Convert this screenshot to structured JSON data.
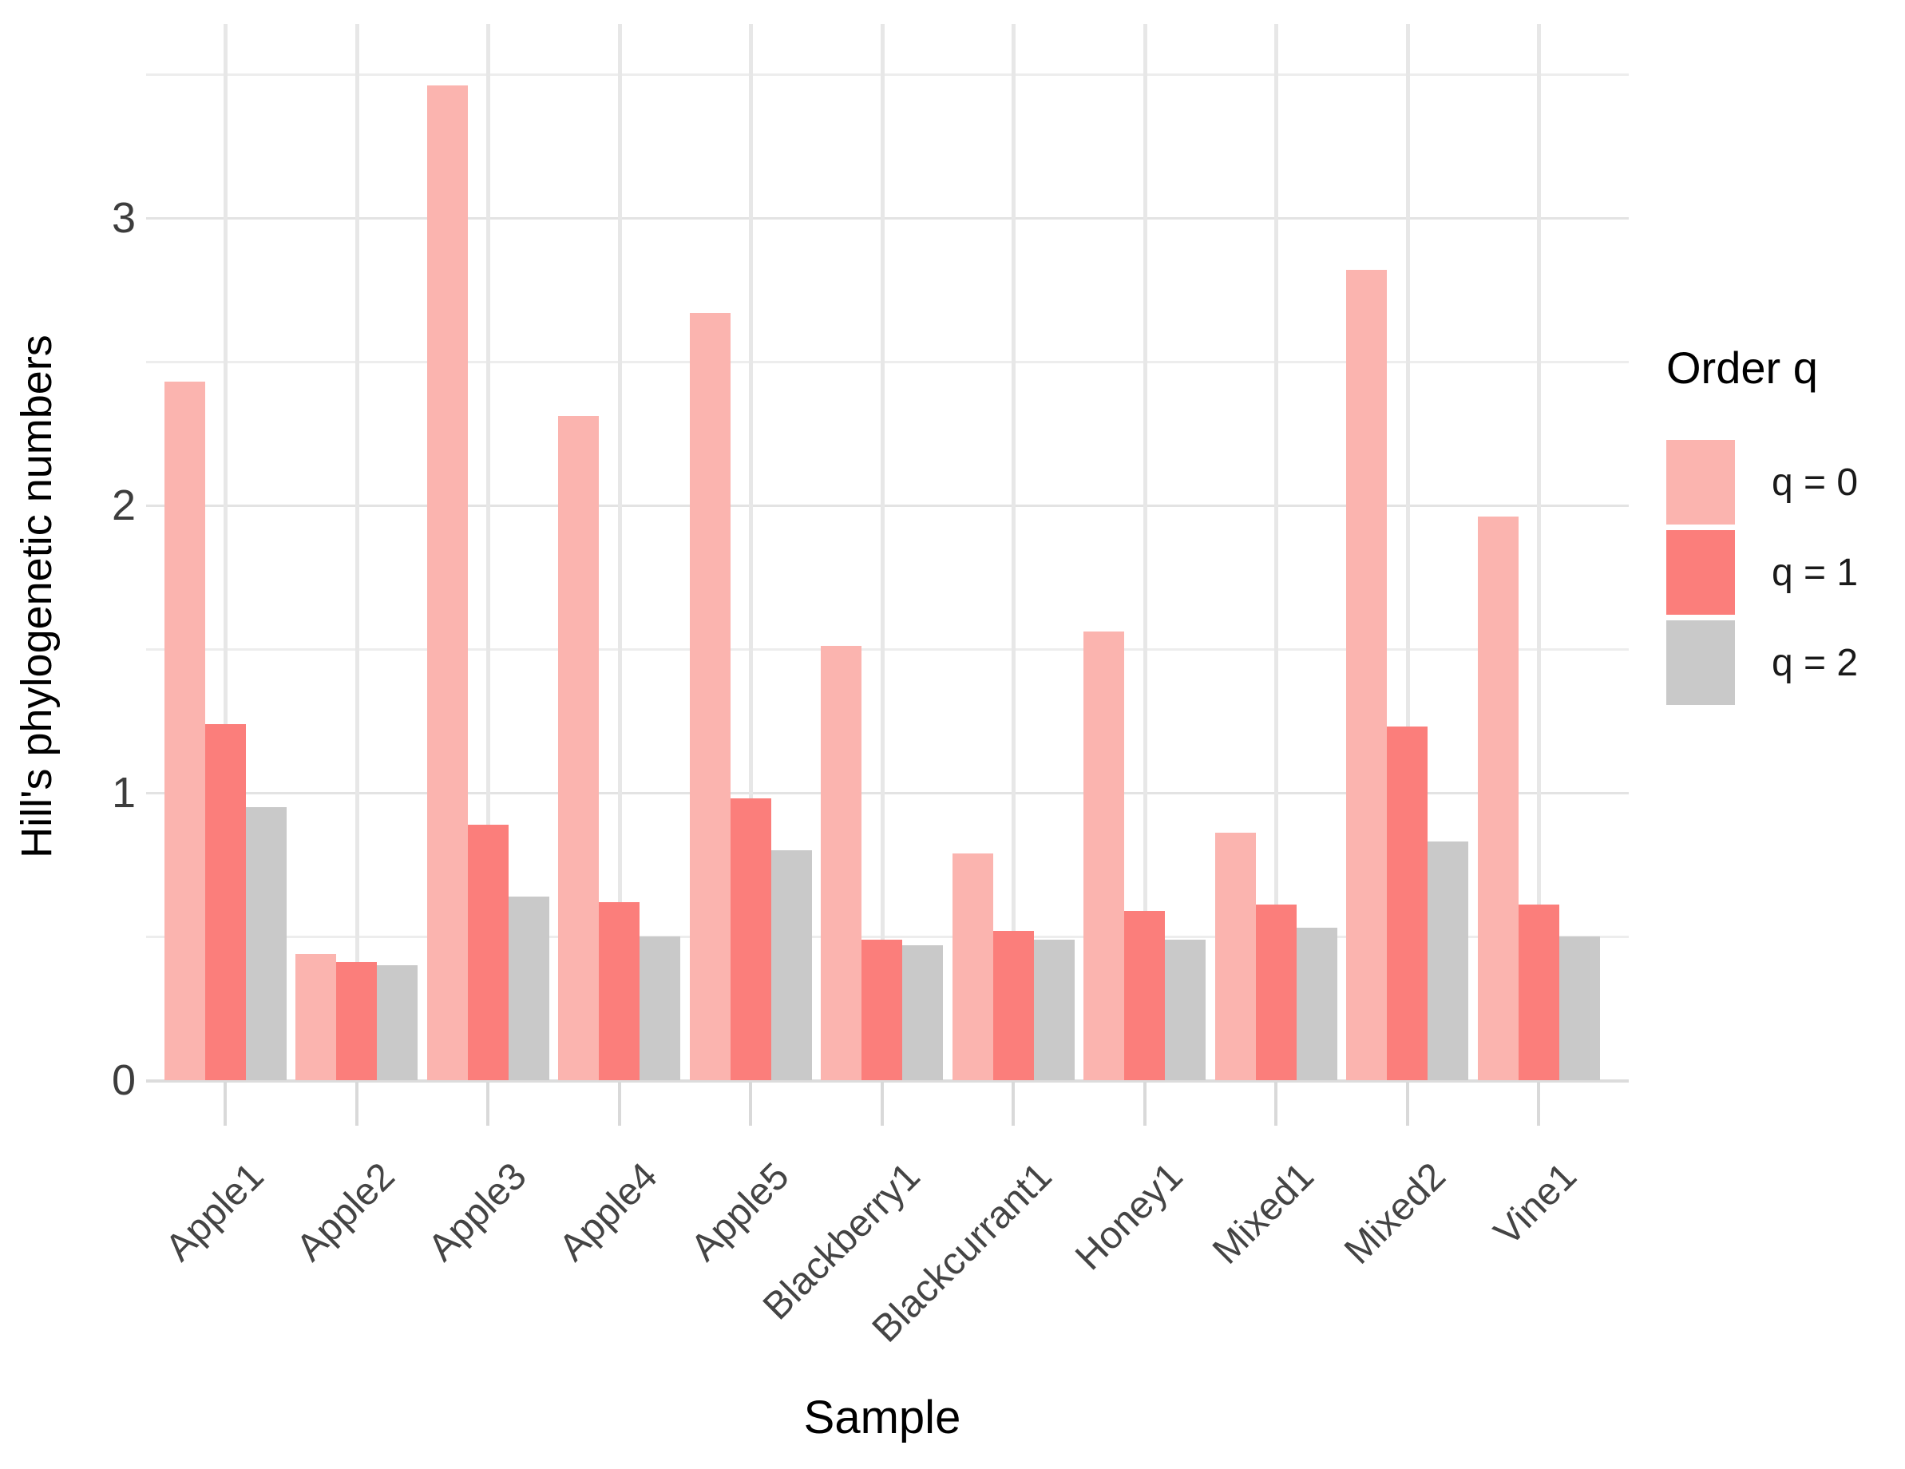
{
  "figure": {
    "background": "#ffffff"
  },
  "chart_data": {
    "type": "bar",
    "title": "",
    "xlabel": "Sample",
    "ylabel": "Hill's phylogenetic numbers",
    "categories": [
      "Apple1",
      "Apple2",
      "Apple3",
      "Apple4",
      "Apple5",
      "Blackberry1",
      "Blackcurrant1",
      "Honey1",
      "Mixed1",
      "Mixed2",
      "Vine1"
    ],
    "series": [
      {
        "name": "q = 0",
        "color": "#fbb4af",
        "values": [
          2.43,
          0.44,
          3.46,
          2.31,
          2.67,
          1.51,
          0.79,
          1.56,
          0.86,
          2.82,
          1.96
        ]
      },
      {
        "name": "q = 1",
        "color": "#fb7e7b",
        "values": [
          1.24,
          0.41,
          0.89,
          0.62,
          0.98,
          0.49,
          0.52,
          0.59,
          0.61,
          1.23,
          0.61
        ]
      },
      {
        "name": "q = 2",
        "color": "#c9c9c9",
        "values": [
          0.95,
          0.4,
          0.64,
          0.5,
          0.8,
          0.47,
          0.49,
          0.49,
          0.53,
          0.83,
          0.5
        ]
      }
    ],
    "ylim": [
      0,
      3.67
    ],
    "yticks": [
      0,
      1,
      2,
      3
    ],
    "yminor": [
      0.5,
      1.5,
      2.5,
      3.5
    ],
    "grid": "horizontal major+minor, vertical major at each category; light gray on white",
    "legend": {
      "title": "Order q",
      "position": "right",
      "entries": [
        "q = 0",
        "q = 1",
        "q = 2"
      ]
    }
  },
  "colors": {
    "grid_major": "#e3e3e3",
    "grid_minor": "#ededed",
    "axis_text": "#3d3d3d",
    "q0": "#fbb4af",
    "q1": "#fb7e7b",
    "q2": "#c9c9c9"
  }
}
